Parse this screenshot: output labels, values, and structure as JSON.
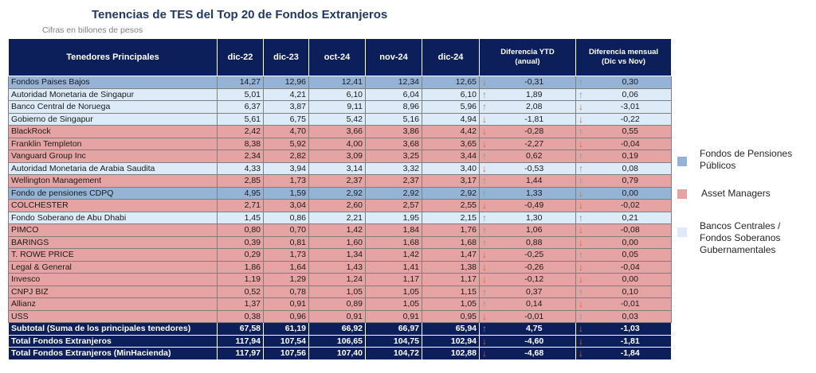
{
  "title": "Tenencias de TES del Top 20 de Fondos Extranjeros",
  "subtitle": "Cifras en billones de pesos",
  "colors": {
    "pension": "#95b3d7",
    "asset": "#e6a3a3",
    "bank": "#dcebf7",
    "header": "#0d1f5a",
    "up_arrow": "#6aa38f",
    "down_arrow": "#e0602d"
  },
  "headers": [
    "Tenedores Principales",
    "dic-22",
    "dic-23",
    "oct-24",
    "nov-24",
    "dic-24"
  ],
  "header_ytd": {
    "line1": "Diferencia YTD",
    "line2": "(anual)"
  },
  "header_mensual": {
    "line1": "Diferencia mensual",
    "line2": "(Dic vs Nov)"
  },
  "rows": [
    {
      "name": "Fondos Paises Bajos",
      "cat": "pension",
      "v": [
        "14,27",
        "12,96",
        "12,41",
        "12,34",
        "12,65"
      ],
      "ytd": "-0,31",
      "ytd_dir": "down",
      "mom": "0,30",
      "mom_dir": "up"
    },
    {
      "name": "Autoridad Monetaria de Singapur",
      "cat": "bank",
      "v": [
        "5,01",
        "4,21",
        "6,10",
        "6,04",
        "6,10"
      ],
      "ytd": "1,89",
      "ytd_dir": "up",
      "mom": "0,06",
      "mom_dir": "up"
    },
    {
      "name": "Banco Central de Noruega",
      "cat": "bank",
      "v": [
        "6,37",
        "3,87",
        "9,11",
        "8,96",
        "5,96"
      ],
      "ytd": "2,08",
      "ytd_dir": "up",
      "mom": "-3,01",
      "mom_dir": "down"
    },
    {
      "name": "Gobierno de Singapur",
      "cat": "bank",
      "v": [
        "5,61",
        "6,75",
        "5,42",
        "5,16",
        "4,94"
      ],
      "ytd": "-1,81",
      "ytd_dir": "down",
      "mom": "-0,22",
      "mom_dir": "down"
    },
    {
      "name": "BlackRock",
      "cat": "asset",
      "v": [
        "2,42",
        "4,70",
        "3,66",
        "3,86",
        "4,42"
      ],
      "ytd": "-0,28",
      "ytd_dir": "down",
      "mom": "0,55",
      "mom_dir": "up"
    },
    {
      "name": "Franklin Templeton",
      "cat": "asset",
      "v": [
        "8,38",
        "5,92",
        "4,00",
        "3,68",
        "3,65"
      ],
      "ytd": "-2,27",
      "ytd_dir": "down",
      "mom": "-0,04",
      "mom_dir": "down"
    },
    {
      "name": "Vanguard Group Inc",
      "cat": "asset",
      "v": [
        "2,34",
        "2,82",
        "3,09",
        "3,25",
        "3,44"
      ],
      "ytd": "0,62",
      "ytd_dir": "up",
      "mom": "0,19",
      "mom_dir": "up"
    },
    {
      "name": "Autoridad Monetaria de Arabia Saudita",
      "cat": "bank",
      "v": [
        "4,33",
        "3,94",
        "3,14",
        "3,32",
        "3,40"
      ],
      "ytd": "-0,53",
      "ytd_dir": "down",
      "mom": "0,08",
      "mom_dir": "up"
    },
    {
      "name": "Wellington Management",
      "cat": "asset",
      "v": [
        "2,85",
        "1,73",
        "2,37",
        "2,37",
        "3,17"
      ],
      "ytd": "1,44",
      "ytd_dir": "up",
      "mom": "0,79",
      "mom_dir": "up"
    },
    {
      "name": "Fondo de pensiones CDPQ",
      "cat": "pension",
      "v": [
        "4,95",
        "1,59",
        "2,92",
        "2,92",
        "2,92"
      ],
      "ytd": "1,33",
      "ytd_dir": "up",
      "mom": "0,00",
      "mom_dir": "down"
    },
    {
      "name": "COLCHESTER",
      "cat": "asset",
      "v": [
        "2,71",
        "3,04",
        "2,60",
        "2,57",
        "2,55"
      ],
      "ytd": "-0,49",
      "ytd_dir": "down",
      "mom": "-0,02",
      "mom_dir": "down"
    },
    {
      "name": "Fondo Soberano  de Abu Dhabi",
      "cat": "bank",
      "v": [
        "1,45",
        "0,86",
        "2,21",
        "1,95",
        "2,15"
      ],
      "ytd": "1,30",
      "ytd_dir": "up",
      "mom": "0,21",
      "mom_dir": "up"
    },
    {
      "name": "PIMCO",
      "cat": "asset",
      "v": [
        "0,80",
        "0,70",
        "1,42",
        "1,84",
        "1,76"
      ],
      "ytd": "1,06",
      "ytd_dir": "up",
      "mom": "-0,08",
      "mom_dir": "down"
    },
    {
      "name": "BARINGS",
      "cat": "asset",
      "v": [
        "0,39",
        "0,81",
        "1,60",
        "1,68",
        "1,68"
      ],
      "ytd": "0,88",
      "ytd_dir": "up",
      "mom": "0,00",
      "mom_dir": "down"
    },
    {
      "name": "T. ROWE PRICE",
      "cat": "asset",
      "v": [
        "0,29",
        "1,73",
        "1,34",
        "1,42",
        "1,47"
      ],
      "ytd": "-0,25",
      "ytd_dir": "down",
      "mom": "0,05",
      "mom_dir": "up"
    },
    {
      "name": "Legal & General",
      "cat": "asset",
      "v": [
        "1,86",
        "1,64",
        "1,43",
        "1,41",
        "1,38"
      ],
      "ytd": "-0,26",
      "ytd_dir": "down",
      "mom": "-0,04",
      "mom_dir": "down"
    },
    {
      "name": "Invesco",
      "cat": "asset",
      "v": [
        "1,19",
        "1,29",
        "1,24",
        "1,17",
        "1,17"
      ],
      "ytd": "-0,12",
      "ytd_dir": "down",
      "mom": "0,00",
      "mom_dir": "down"
    },
    {
      "name": "CNPJ BIZ",
      "cat": "asset",
      "v": [
        "0,52",
        "0,78",
        "1,05",
        "1,05",
        "1,15"
      ],
      "ytd": "0,37",
      "ytd_dir": "up",
      "mom": "0,10",
      "mom_dir": "up"
    },
    {
      "name": "Allianz",
      "cat": "asset",
      "v": [
        "1,37",
        "0,91",
        "0,89",
        "1,05",
        "1,05"
      ],
      "ytd": "0,14",
      "ytd_dir": "up",
      "mom": "-0,01",
      "mom_dir": "down"
    },
    {
      "name": "USS",
      "cat": "asset",
      "v": [
        "0,38",
        "0,96",
        "0,91",
        "0,91",
        "0,95"
      ],
      "ytd": "-0,01",
      "ytd_dir": "down",
      "mom": "0,03",
      "mom_dir": "up"
    }
  ],
  "totals": [
    {
      "name": "Subtotal (Suma de los principales tenedores)",
      "v": [
        "67,58",
        "61,19",
        "66,92",
        "66,97",
        "65,94"
      ],
      "ytd": "4,75",
      "ytd_dir": "up",
      "mom": "-1,03",
      "mom_dir": "down"
    },
    {
      "name": "Total Fondos Extranjeros",
      "v": [
        "117,94",
        "107,54",
        "106,65",
        "104,75",
        "102,94"
      ],
      "ytd": "-4,60",
      "ytd_dir": "down",
      "mom": "-1,81",
      "mom_dir": "down"
    },
    {
      "name": "Total Fondos Extranjeros (MinHacienda)",
      "v": [
        "117,97",
        "107,56",
        "107,40",
        "104,72",
        "102,88"
      ],
      "ytd": "-4,68",
      "ytd_dir": "down",
      "mom": "-1,84",
      "mom_dir": "down"
    }
  ],
  "legend": [
    {
      "cat": "pension",
      "line1": "Fondos de Pensiones",
      "line2": "Públicos",
      "line3": ""
    },
    {
      "cat": "asset",
      "line1": "Asset Managers",
      "line2": "",
      "line3": ""
    },
    {
      "cat": "bank",
      "line1": "Bancos Centrales /",
      "line2": "Fondos Soberanos",
      "line3": "Gubernamentales"
    }
  ]
}
